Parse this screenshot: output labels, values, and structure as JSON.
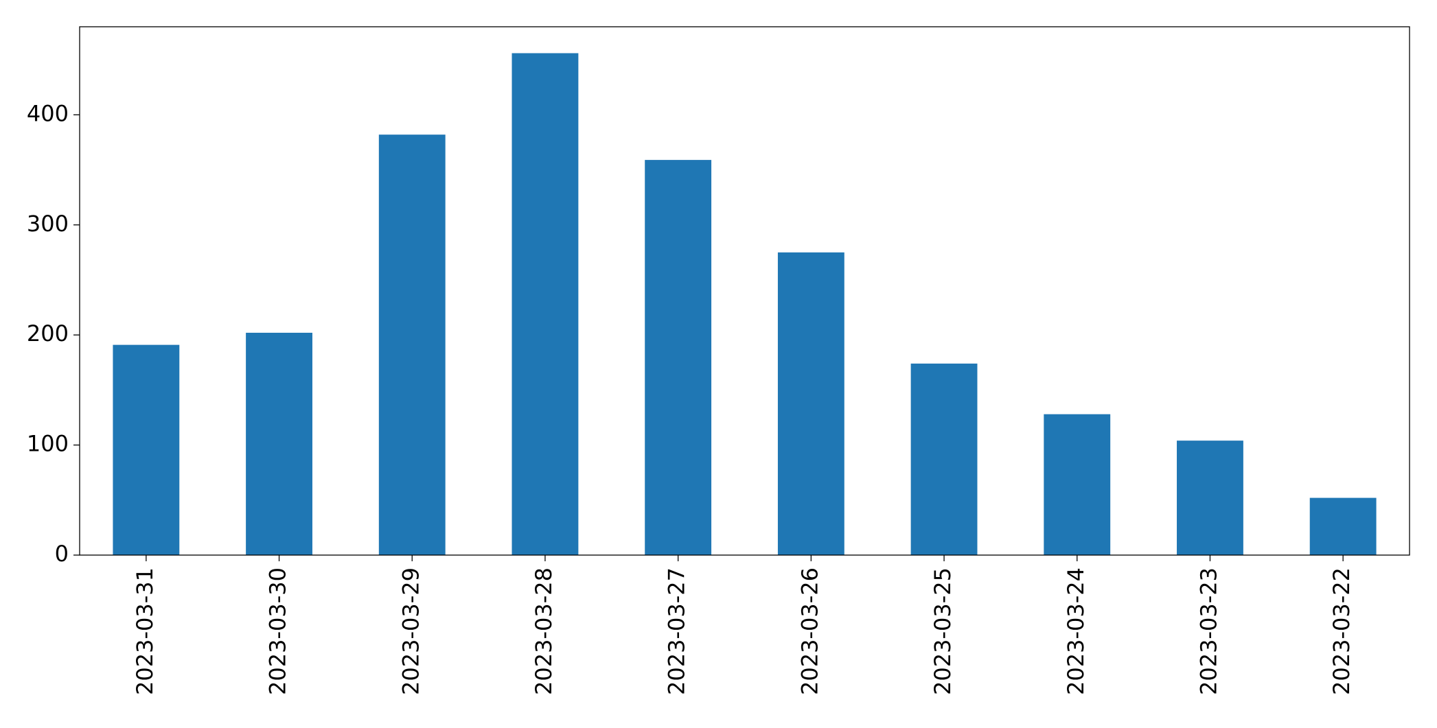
{
  "chart_data": {
    "type": "bar",
    "categories": [
      "2023-03-31",
      "2023-03-30",
      "2023-03-29",
      "2023-03-28",
      "2023-03-27",
      "2023-03-26",
      "2023-03-25",
      "2023-03-24",
      "2023-03-23",
      "2023-03-22"
    ],
    "values": [
      191,
      202,
      382,
      456,
      359,
      275,
      174,
      128,
      104,
      52
    ],
    "color": "#1f77b4",
    "ylim": [
      0,
      480
    ],
    "yticks": [
      0,
      100,
      200,
      300,
      400
    ],
    "grid": false
  }
}
